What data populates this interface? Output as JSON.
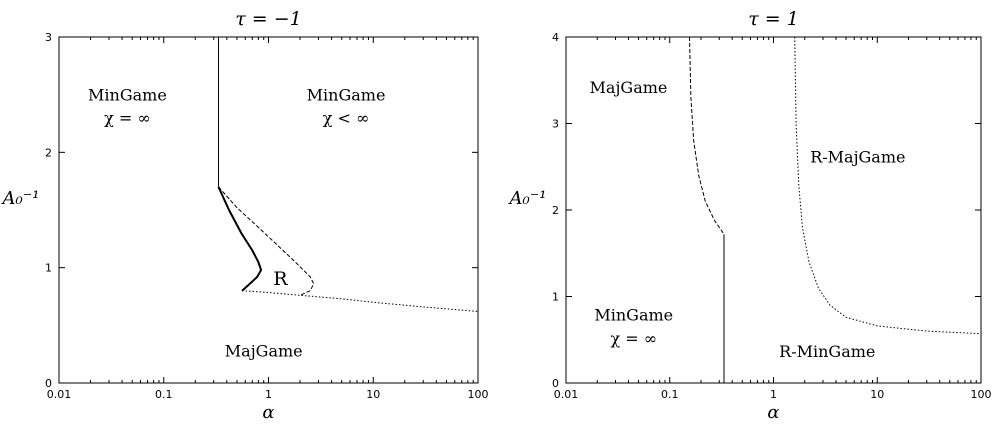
{
  "chart_data": [
    {
      "type": "line",
      "title": "τ = −1",
      "xlabel": "α",
      "ylabel": "A₀⁻¹",
      "xscale": "log",
      "xlim": [
        0.01,
        100
      ],
      "ylim": [
        0,
        3
      ],
      "xticks": [
        0.01,
        0.1,
        1,
        10,
        100
      ],
      "xtick_labels": [
        "0.01",
        "0.1",
        "1",
        "10",
        "100"
      ],
      "yticks": [
        0,
        1,
        2,
        3
      ],
      "ytick_labels": [
        "0",
        "1",
        "2",
        "3"
      ],
      "grid": false,
      "series": [
        {
          "style": "solid",
          "width": 1,
          "points": [
            [
              0.333,
              3.0
            ],
            [
              0.333,
              1.7
            ]
          ]
        },
        {
          "style": "solid",
          "width": 2,
          "points": [
            [
              0.333,
              1.7
            ],
            [
              0.42,
              1.5
            ],
            [
              0.55,
              1.3
            ],
            [
              0.7,
              1.15
            ],
            [
              0.8,
              1.05
            ],
            [
              0.85,
              0.98
            ],
            [
              0.78,
              0.92
            ],
            [
              0.68,
              0.87
            ],
            [
              0.56,
              0.8
            ]
          ]
        },
        {
          "style": "dashed",
          "width": 1,
          "points": [
            [
              0.333,
              1.7
            ],
            [
              0.5,
              1.52
            ],
            [
              0.8,
              1.35
            ],
            [
              1.2,
              1.2
            ],
            [
              1.8,
              1.05
            ],
            [
              2.5,
              0.92
            ],
            [
              2.7,
              0.86
            ],
            [
              2.5,
              0.8
            ],
            [
              2.0,
              0.76
            ]
          ]
        },
        {
          "style": "dotted",
          "width": 1,
          "points": [
            [
              0.56,
              0.8
            ],
            [
              1,
              0.785
            ],
            [
              2,
              0.76
            ],
            [
              5,
              0.73
            ],
            [
              10,
              0.7
            ],
            [
              30,
              0.66
            ],
            [
              100,
              0.62
            ]
          ]
        }
      ],
      "annotations": [
        {
          "text": "MinGame",
          "x": 0.045,
          "y": 2.45
        },
        {
          "text": "χ = ∞",
          "x": 0.045,
          "y": 2.25
        },
        {
          "text": "MinGame",
          "x": 5.5,
          "y": 2.45
        },
        {
          "text": "χ < ∞",
          "x": 5.5,
          "y": 2.25
        },
        {
          "text": "R",
          "x": 1.3,
          "y": 0.85
        },
        {
          "text": "MajGame",
          "x": 0.9,
          "y": 0.23
        }
      ]
    },
    {
      "type": "line",
      "title": "τ = 1",
      "xlabel": "α",
      "ylabel": "A₀⁻¹",
      "xscale": "log",
      "xlim": [
        0.01,
        100
      ],
      "ylim": [
        0,
        4
      ],
      "xticks": [
        0.01,
        0.1,
        1,
        10,
        100
      ],
      "xtick_labels": [
        "0.01",
        "0.1",
        "1",
        "10",
        "100"
      ],
      "yticks": [
        0,
        1,
        2,
        3,
        4
      ],
      "ytick_labels": [
        "0",
        "1",
        "2",
        "3",
        "4"
      ],
      "grid": false,
      "series": [
        {
          "style": "dashed",
          "width": 1,
          "points": [
            [
              0.155,
              4.0
            ],
            [
              0.16,
              3.3
            ],
            [
              0.17,
              2.8
            ],
            [
              0.19,
              2.4
            ],
            [
              0.22,
              2.1
            ],
            [
              0.27,
              1.88
            ],
            [
              0.333,
              1.72
            ]
          ]
        },
        {
          "style": "solid",
          "width": 1,
          "points": [
            [
              0.333,
              1.72
            ],
            [
              0.333,
              0.0
            ]
          ]
        },
        {
          "style": "dotted",
          "width": 1,
          "points": [
            [
              1.6,
              4.0
            ],
            [
              1.65,
              3.0
            ],
            [
              1.75,
              2.3
            ],
            [
              1.9,
              1.8
            ],
            [
              2.2,
              1.4
            ],
            [
              2.7,
              1.1
            ],
            [
              3.5,
              0.9
            ],
            [
              5,
              0.76
            ],
            [
              10,
              0.66
            ],
            [
              30,
              0.6
            ],
            [
              100,
              0.57
            ]
          ]
        }
      ],
      "annotations": [
        {
          "text": "MajGame",
          "x": 0.04,
          "y": 3.35
        },
        {
          "text": "R-MajGame",
          "x": 6.5,
          "y": 2.55
        },
        {
          "text": "MinGame",
          "x": 0.045,
          "y": 0.72
        },
        {
          "text": "χ = ∞",
          "x": 0.045,
          "y": 0.45
        },
        {
          "text": "R-MinGame",
          "x": 3.3,
          "y": 0.3
        }
      ]
    }
  ]
}
